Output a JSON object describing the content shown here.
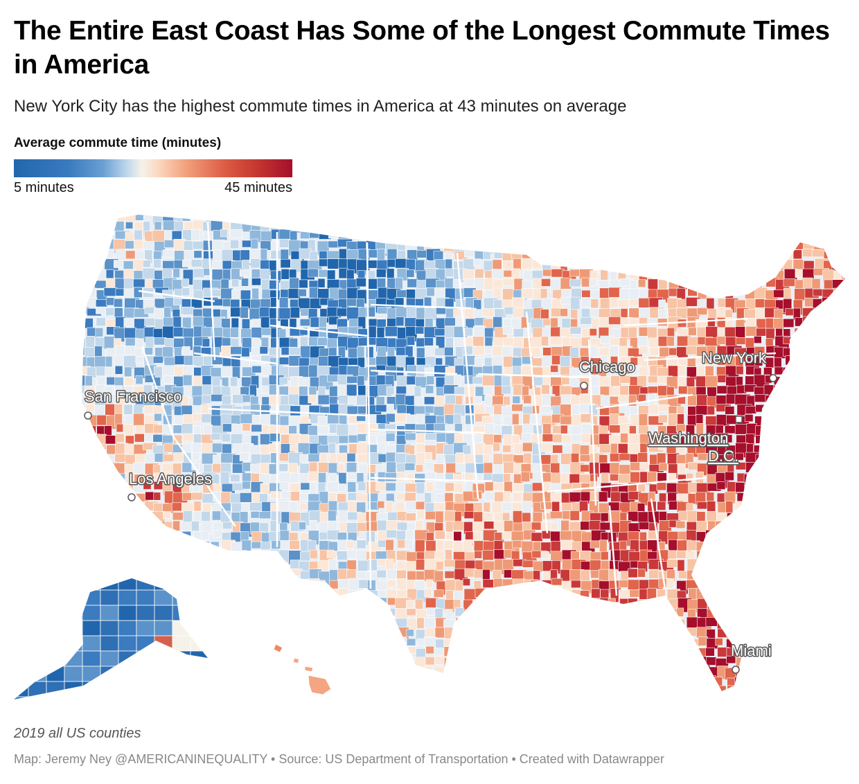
{
  "title": "The Entire East Coast Has Some of the Longest Commute Times in America",
  "subtitle": "New York City has the highest commute times in America at 43 minutes on average",
  "legend": {
    "title": "Average commute time (minutes)",
    "min_label": "5 minutes",
    "max_label": "45 minutes",
    "min_value": 5,
    "max_value": 45,
    "colors": {
      "low": "#2166ac",
      "mid": "#f6f2ea",
      "high": "#a50f2c"
    }
  },
  "cities": [
    {
      "name": "San Francisco",
      "marker": "circle"
    },
    {
      "name": "Los Angeles",
      "marker": "circle"
    },
    {
      "name": "Chicago",
      "marker": "circle"
    },
    {
      "name": "New York",
      "marker": "circle"
    },
    {
      "name": "Washington D.C.",
      "line1": "Washington",
      "line2": "D.C.",
      "marker": "square"
    },
    {
      "name": "Miami",
      "marker": "circle"
    }
  ],
  "notes": "2019 all US counties",
  "footer": "Map: Jeremy Ney @AMERICANINEQUALITY • Source: US Department of Transportation • Created with Datawrapper"
}
